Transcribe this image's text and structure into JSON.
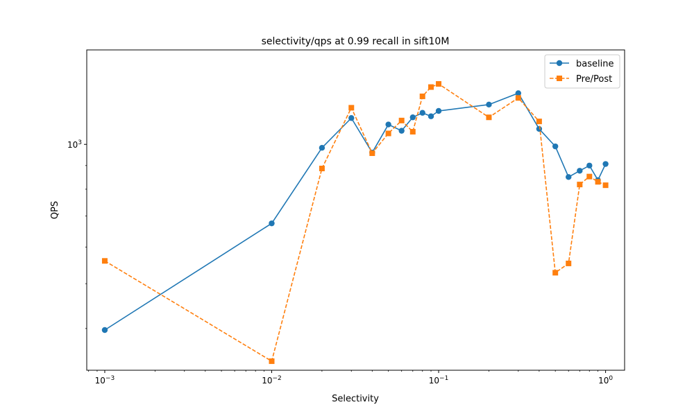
{
  "chart_data": {
    "type": "line",
    "title": "selectivity/qps at 0.99 recall in sift10M",
    "xlabel": "Selectivity",
    "ylabel": "QPS",
    "xscale": "log",
    "yscale": "log",
    "xlim": [
      0.00078,
      1.3
    ],
    "ylim": [
      325,
      1600
    ],
    "x_tick_labels": [
      "10^-3",
      "10^-2",
      "10^-1",
      "10^0"
    ],
    "y_tick_labels": [
      "10^3"
    ],
    "legend": {
      "position": "top-right",
      "entries": [
        "baseline",
        "Pre/Post"
      ]
    },
    "series": [
      {
        "name": "baseline",
        "color": "#1f77b4",
        "linestyle": "solid",
        "marker": "circle",
        "x": [
          0.001,
          0.01,
          0.02,
          0.03,
          0.04,
          0.05,
          0.06,
          0.07,
          0.08,
          0.09,
          0.1,
          0.2,
          0.3,
          0.4,
          0.5,
          0.6,
          0.7,
          0.8,
          0.9,
          1.0
        ],
        "values": [
          397,
          675,
          983,
          1140,
          960,
          1104,
          1070,
          1144,
          1170,
          1150,
          1181,
          1219,
          1290,
          1080,
          990,
          850,
          877,
          900,
          837,
          907
        ]
      },
      {
        "name": "Pre/Post",
        "color": "#ff7f0e",
        "linestyle": "dashed",
        "marker": "square",
        "x": [
          0.001,
          0.01,
          0.02,
          0.03,
          0.04,
          0.05,
          0.06,
          0.07,
          0.08,
          0.09,
          0.1,
          0.2,
          0.3,
          0.4,
          0.5,
          0.6,
          0.7,
          0.8,
          0.9,
          1.0
        ],
        "values": [
          560,
          340,
          887,
          1200,
          957,
          1056,
          1126,
          1065,
          1270,
          1330,
          1351,
          1144,
          1260,
          1121,
          528,
          553,
          819,
          852,
          830,
          816
        ]
      }
    ]
  }
}
